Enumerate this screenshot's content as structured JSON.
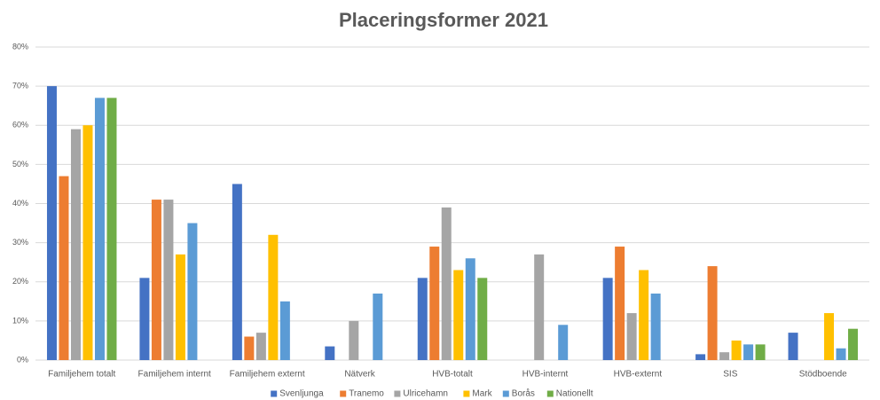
{
  "chart_data": {
    "type": "bar",
    "title": "Placeringsformer 2021",
    "categories": [
      "Familjehem totalt",
      "Familjehem internt",
      "Familjehem externt",
      "Nätverk",
      "HVB-totalt",
      "HVB-internt",
      "HVB-externt",
      "SIS",
      "Stödboende"
    ],
    "series": [
      {
        "name": "Svenljunga",
        "color": "#4472c4",
        "values": [
          70,
          21,
          45,
          3.5,
          21,
          null,
          21,
          1.5,
          7
        ]
      },
      {
        "name": "Tranemo",
        "color": "#ed7d31",
        "values": [
          47,
          41,
          6,
          null,
          29,
          null,
          29,
          24,
          null
        ]
      },
      {
        "name": "Ulricehamn",
        "color": "#a5a5a5",
        "values": [
          59,
          41,
          7,
          10,
          39,
          27,
          12,
          2,
          null
        ]
      },
      {
        "name": "Mark",
        "color": "#ffc000",
        "values": [
          60,
          27,
          32,
          null,
          23,
          null,
          23,
          5,
          12
        ]
      },
      {
        "name": "Borås",
        "color": "#5b9bd5",
        "values": [
          67,
          35,
          15,
          17,
          26,
          9,
          17,
          4,
          3
        ]
      },
      {
        "name": "Nationellt",
        "color": "#70ad47",
        "values": [
          67,
          null,
          null,
          null,
          21,
          null,
          null,
          4,
          8
        ]
      }
    ],
    "ylim": [
      0,
      80
    ],
    "yticks": [
      {
        "value": 0,
        "label": "0%"
      },
      {
        "value": 10,
        "label": "10%"
      },
      {
        "value": 20,
        "label": "20%"
      },
      {
        "value": 30,
        "label": "30%"
      },
      {
        "value": 40,
        "label": "40%"
      },
      {
        "value": 50,
        "label": "50%"
      },
      {
        "value": 60,
        "label": "60%"
      },
      {
        "value": 70,
        "label": "70%"
      },
      {
        "value": 80,
        "label": "80%"
      }
    ],
    "grid": true,
    "legend": "bottom"
  }
}
